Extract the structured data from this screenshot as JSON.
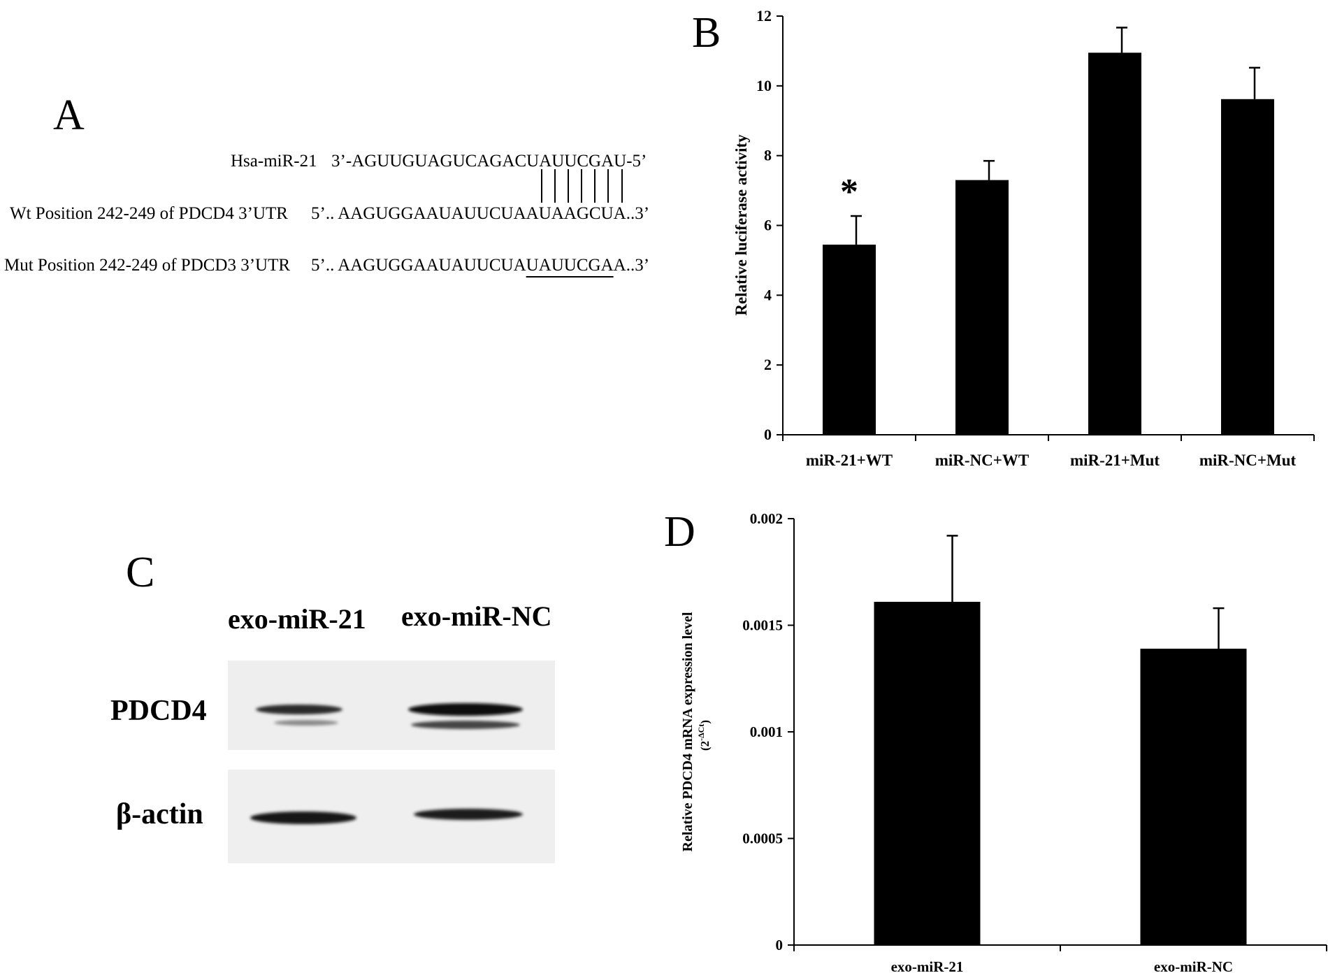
{
  "panels": {
    "a": {
      "letter": "A",
      "mirna_label": "Hsa-miR-21",
      "mirna_seq": "3’-AGUUGUAGUCAGACUAUUCGAU-5’",
      "wt_label": "Wt Position 242-249 of PDCD4 3’UTR",
      "wt_seq_prefix": "5’.. AAGUGGAAUAUUCUA",
      "wt_seq_site": "AUAAGCU",
      "wt_seq_suffix": "A..3’",
      "mut_label": "Mut Position 242-249 of PDCD3 3’UTR",
      "mut_seq_prefix": "5’.. AAGUGGAAUAUUCUA",
      "mut_seq_site": "UAUUCGA",
      "mut_seq_suffix": "A..3’"
    },
    "b": {
      "letter": "B"
    },
    "c": {
      "letter": "C",
      "lane_labels": [
        "exo-miR-21",
        "exo-miR-NC"
      ],
      "row_labels": [
        "PDCD4",
        "β-actin"
      ]
    },
    "d": {
      "letter": "D"
    }
  },
  "chart_data": [
    {
      "type": "bar",
      "panel": "B",
      "title": "",
      "xlabel": "",
      "ylabel": "Relative luciferase activity",
      "categories": [
        "miR-21+WT",
        "miR-NC+WT",
        "miR-21+Mut",
        "miR-NC+Mut"
      ],
      "values": [
        5.45,
        7.3,
        10.95,
        9.62
      ],
      "errors": [
        0.82,
        0.55,
        0.72,
        0.9
      ],
      "annotations": [
        {
          "category": "miR-21+WT",
          "text": "*"
        }
      ],
      "ylim": [
        0,
        12
      ],
      "yticks": [
        "0",
        "2",
        "4",
        "6",
        "8",
        "10",
        "12"
      ],
      "bar_color": "#000000",
      "grid": false
    },
    {
      "type": "bar",
      "panel": "D",
      "title": "",
      "xlabel": "",
      "ylabel_main": "Relative PDCD4 mRNA expression level",
      "ylabel_sub_base": "(2",
      "ylabel_sub_sup": "-ΔCt",
      "ylabel_sub_end": ")",
      "categories": [
        "exo-miR-21",
        "exo-miR-NC"
      ],
      "values": [
        0.00161,
        0.00139
      ],
      "errors": [
        0.00031,
        0.00019
      ],
      "ylim": [
        0,
        0.002
      ],
      "yticks": [
        "0",
        "0.0005",
        "0.001",
        "0.0015",
        "0.002"
      ],
      "bar_color": "#000000",
      "grid": false
    }
  ]
}
